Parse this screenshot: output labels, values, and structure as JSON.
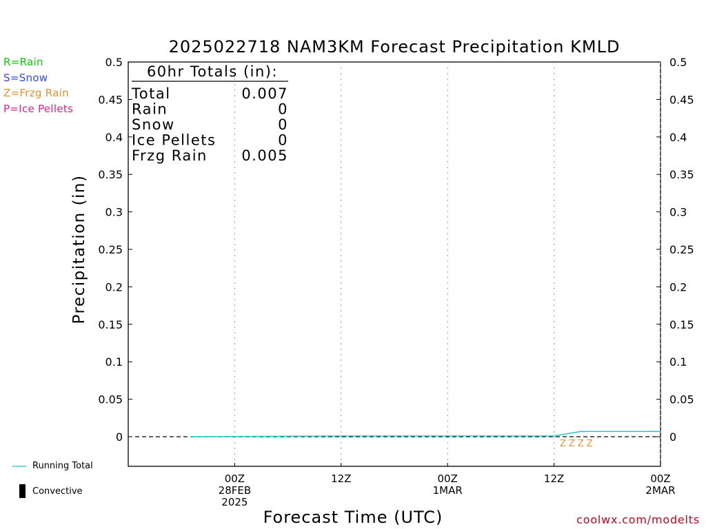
{
  "legend_left": [
    {
      "text": "R=Rain",
      "color": "#00cc00"
    },
    {
      "text": "S=Snow",
      "color": "#3344ee"
    },
    {
      "text": "Z=Frzg Rain",
      "color": "#e8902a"
    },
    {
      "text": "P=Ice Pellets",
      "color": "#e0208a"
    }
  ],
  "key": {
    "running_total": "Running Total",
    "running_total_color": "#1bc4c4",
    "convective": "Convective"
  },
  "source": "coolwx.com/modelts",
  "chart_data": {
    "type": "line",
    "title": "2025022718 NAM3KM Forecast Precipitation KMLD",
    "xlabel": "Forecast Time (UTC)",
    "ylabel": "Precipitation (in)",
    "ylim": [
      0,
      0.5
    ],
    "yticks": [
      "0",
      "0.05",
      "0.1",
      "0.15",
      "0.2",
      "0.25",
      "0.3",
      "0.35",
      "0.4",
      "0.45",
      "0.5"
    ],
    "xlim_hours": [
      -6,
      54
    ],
    "xticks": [
      {
        "hour": 6,
        "lines": [
          "00Z",
          "28FEB",
          "2025"
        ]
      },
      {
        "hour": 18,
        "lines": [
          "12Z"
        ]
      },
      {
        "hour": 30,
        "lines": [
          "00Z",
          "1MAR"
        ]
      },
      {
        "hour": 42,
        "lines": [
          "12Z"
        ]
      },
      {
        "hour": 54,
        "lines": [
          "00Z",
          "2MAR"
        ]
      }
    ],
    "grid": "dotted vertical",
    "totals_box": {
      "header": "60hr Totals (in):",
      "rows": [
        {
          "label": "Total",
          "value": "0.007"
        },
        {
          "label": "Rain",
          "value": "0"
        },
        {
          "label": "Snow",
          "value": "0"
        },
        {
          "label": "Ice Pellets",
          "value": "0"
        },
        {
          "label": "Frzg Rain",
          "value": "0.005"
        }
      ]
    },
    "series": [
      {
        "name": "Running Total",
        "color": "#1bc4c4",
        "x": [
          1,
          18,
          42,
          45,
          60
        ],
        "y": [
          0,
          0.001,
          0.001,
          0.007,
          0.007
        ]
      }
    ],
    "precip_type_markers": {
      "symbol": "Z",
      "color": "#e8902a",
      "hours": [
        43,
        44,
        45,
        46
      ]
    },
    "zero_line": "dashed"
  }
}
